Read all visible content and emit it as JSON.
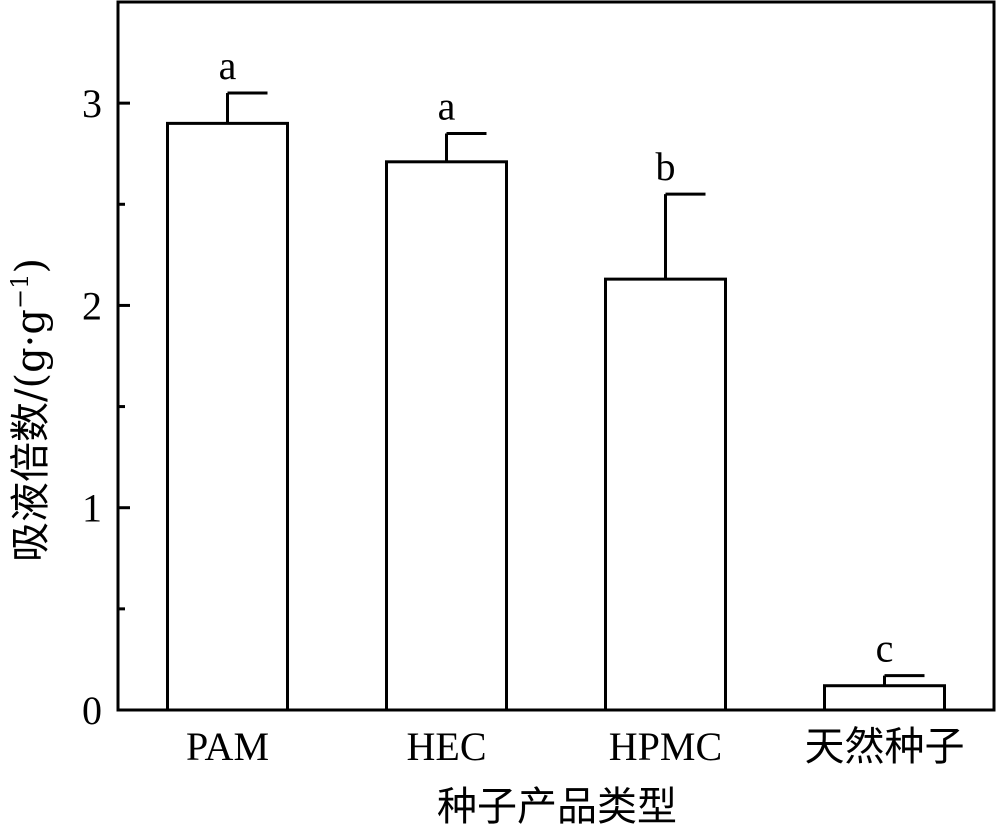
{
  "chart_data": {
    "type": "bar",
    "categories": [
      "PAM",
      "HEC",
      "HPMC",
      "天然种子"
    ],
    "values": [
      2.9,
      2.71,
      2.13,
      0.12
    ],
    "error": [
      0.15,
      0.14,
      0.42,
      0.05
    ],
    "significance": [
      "a",
      "a",
      "b",
      "c"
    ],
    "title": "",
    "xlabel": "种子产品类型",
    "ylabel_main": "吸液倍数/(g·g",
    "ylabel_sup": "−1",
    "ylabel_tail": ")",
    "ylim": [
      0,
      3.5
    ],
    "yticks": [
      0,
      1,
      2,
      3
    ],
    "yminor_ticks": [
      0.5,
      1.5,
      2.5
    ],
    "grid": false,
    "legend": "none",
    "bar_fill": "#ffffff",
    "bar_stroke": "#000000"
  }
}
